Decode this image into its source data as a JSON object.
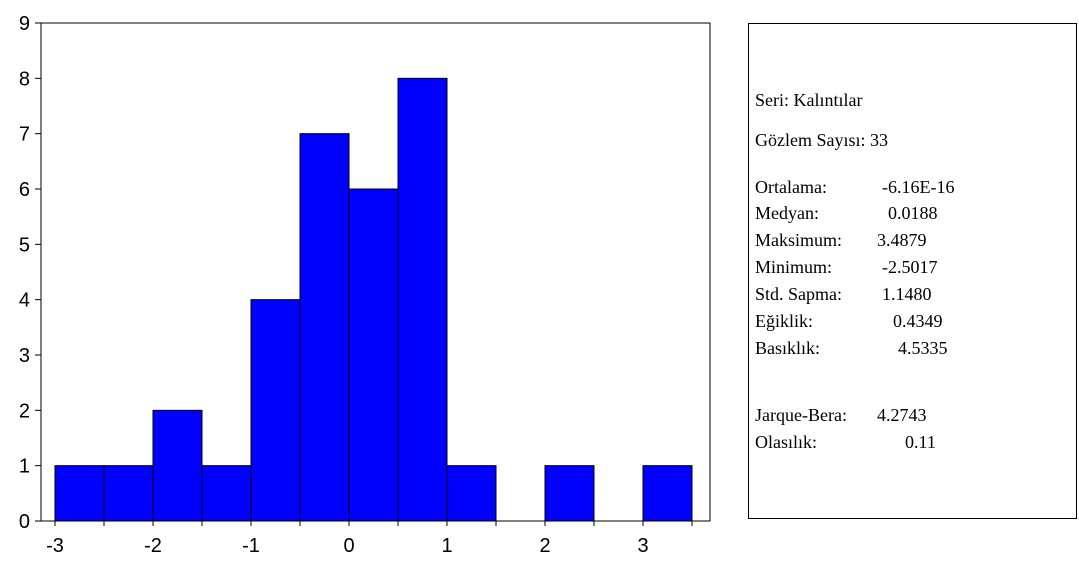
{
  "chart_data": {
    "type": "bar",
    "bins": [
      {
        "from": -3.0,
        "to": -2.5,
        "count": 1
      },
      {
        "from": -2.5,
        "to": -2.0,
        "count": 1
      },
      {
        "from": -2.0,
        "to": -1.5,
        "count": 2
      },
      {
        "from": -1.5,
        "to": -1.0,
        "count": 1
      },
      {
        "from": -1.0,
        "to": -0.5,
        "count": 4
      },
      {
        "from": -0.5,
        "to": 0.0,
        "count": 7
      },
      {
        "from": 0.0,
        "to": 0.5,
        "count": 6
      },
      {
        "from": 0.5,
        "to": 1.0,
        "count": 8
      },
      {
        "from": 1.0,
        "to": 1.5,
        "count": 1
      },
      {
        "from": 1.5,
        "to": 2.0,
        "count": 0
      },
      {
        "from": 2.0,
        "to": 2.5,
        "count": 1
      },
      {
        "from": 2.5,
        "to": 3.0,
        "count": 0
      },
      {
        "from": 3.0,
        "to": 3.5,
        "count": 1
      }
    ],
    "xlim": [
      -3.0,
      3.6
    ],
    "ylim": [
      0,
      9
    ],
    "x_ticks": [
      "-3",
      "-2",
      "-1",
      "0",
      "1",
      "2",
      "3"
    ],
    "y_ticks": [
      "0",
      "1",
      "2",
      "3",
      "4",
      "5",
      "6",
      "7",
      "8",
      "9"
    ],
    "bar_color": "#0000FF",
    "grid": false
  },
  "stats": {
    "series": "Seri: Kalıntılar",
    "observations": "Gözlem Sayısı: 33",
    "rows": [
      {
        "label": "Ortalama:",
        "value": "-6.16E-16"
      },
      {
        "label": "Medyan:",
        "value": "0.0188"
      },
      {
        "label": "Maksimum:",
        "value": "3.4879"
      },
      {
        "label": "Minimum:",
        "value": "-2.5017"
      },
      {
        "label": "Std. Sapma:",
        "value": "1.1480"
      },
      {
        "label": "Eğiklik:",
        "value": "0.4349"
      },
      {
        "label": "Basıklık:",
        "value": "4.5335"
      }
    ],
    "tests": [
      {
        "label": "Jarque-Bera:",
        "value": "4.2743"
      },
      {
        "label": "Olasılık:",
        "value": "0.11"
      }
    ]
  }
}
